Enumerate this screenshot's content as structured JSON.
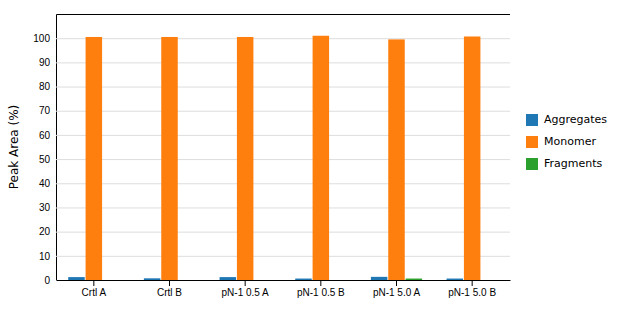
{
  "chart_data": {
    "type": "bar",
    "categories": [
      "Crtl A",
      "Crtl B",
      "pN-1 0.5 A",
      "pN-1 0.5 B",
      "pN-1 5.0 A",
      "pN-1 5.0 B"
    ],
    "series": [
      {
        "name": "Aggregates",
        "values": [
          1.2,
          0.7,
          1.2,
          0.6,
          1.3,
          0.6
        ]
      },
      {
        "name": "Monomer",
        "values": [
          100.5,
          100.5,
          100.5,
          101.0,
          99.5,
          100.7
        ]
      },
      {
        "name": "Fragments",
        "values": [
          0.0,
          0.0,
          0.0,
          0.0,
          0.6,
          0.0
        ]
      }
    ],
    "ylabel": "Peak Area (%)",
    "ylim": [
      0,
      110
    ],
    "yticks": [
      0,
      10,
      20,
      30,
      40,
      50,
      60,
      70,
      80,
      90,
      100
    ],
    "grid": true,
    "legend": "right"
  }
}
